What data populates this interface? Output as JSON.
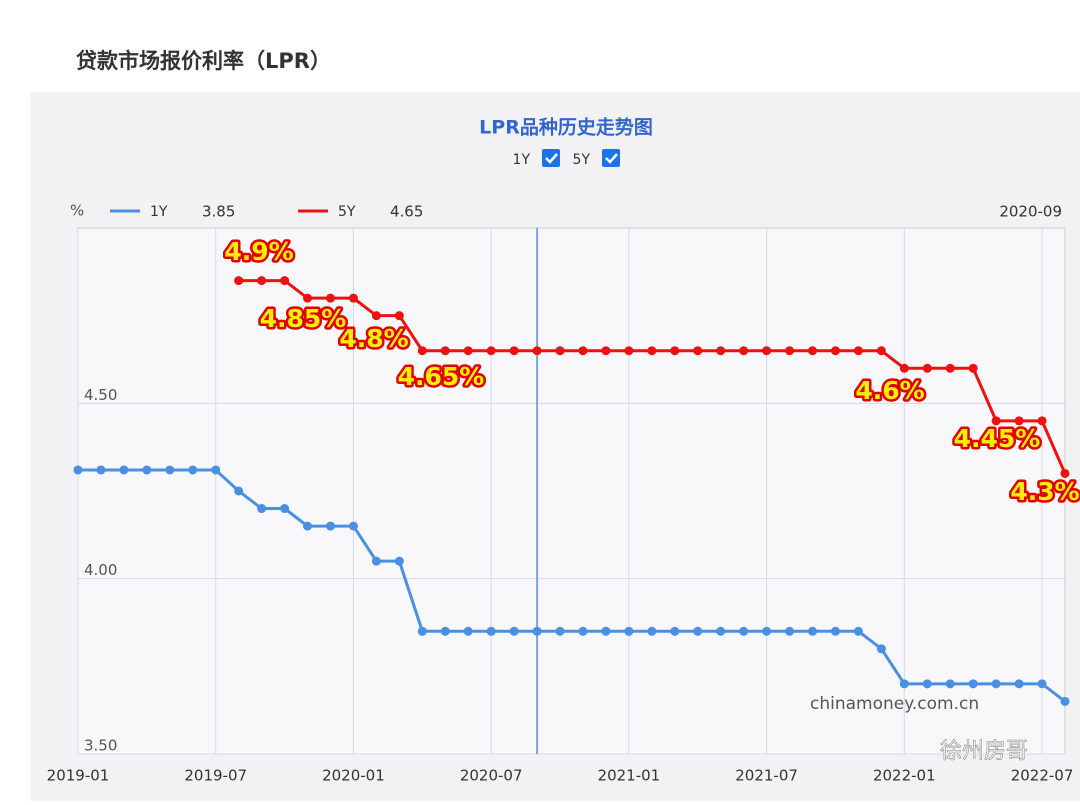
{
  "header": {
    "title": "贷款市场报价利率（LPR）"
  },
  "chart_data": {
    "type": "line",
    "title": "LPR品种历史走势图",
    "toggles": [
      "1Y",
      "5Y"
    ],
    "y_unit": "%",
    "hover_x": "2020-09",
    "categories": [
      "2019-01",
      null,
      null,
      null,
      null,
      null,
      "2019-07",
      null,
      null,
      null,
      null,
      null,
      "2020-01",
      null,
      null,
      null,
      null,
      null,
      "2020-07",
      null,
      null,
      null,
      null,
      null,
      "2021-01",
      null,
      null,
      null,
      null,
      null,
      "2021-07",
      null,
      null,
      null,
      null,
      null,
      "2022-01",
      null,
      null,
      null,
      null,
      null,
      "2022-07",
      null
    ],
    "series": [
      {
        "name": "1Y",
        "color": "#4a90e2",
        "hover_value": "3.85",
        "values": [
          4.31,
          4.31,
          4.31,
          4.31,
          4.31,
          4.31,
          4.31,
          4.25,
          4.2,
          4.2,
          4.15,
          4.15,
          4.15,
          4.05,
          4.05,
          3.85,
          3.85,
          3.85,
          3.85,
          3.85,
          3.85,
          3.85,
          3.85,
          3.85,
          3.85,
          3.85,
          3.85,
          3.85,
          3.85,
          3.85,
          3.85,
          3.85,
          3.85,
          3.85,
          3.85,
          3.8,
          3.7,
          3.7,
          3.7,
          3.7,
          3.7,
          3.7,
          3.7,
          3.65
        ]
      },
      {
        "name": "5Y",
        "color": "#ee1111",
        "hover_value": "4.65",
        "values": [
          null,
          null,
          null,
          null,
          null,
          null,
          null,
          4.85,
          4.85,
          4.85,
          4.8,
          4.8,
          4.8,
          4.75,
          4.75,
          4.65,
          4.65,
          4.65,
          4.65,
          4.65,
          4.65,
          4.65,
          4.65,
          4.65,
          4.65,
          4.65,
          4.65,
          4.65,
          4.65,
          4.65,
          4.65,
          4.65,
          4.65,
          4.65,
          4.65,
          4.65,
          4.6,
          4.6,
          4.6,
          4.6,
          4.45,
          4.45,
          4.45,
          4.3
        ]
      }
    ],
    "ylim": [
      3.5,
      5.0
    ],
    "yticks": [
      {
        "value": 3.5,
        "label": "3.50"
      },
      {
        "value": 4.0,
        "label": "4.00"
      },
      {
        "value": 4.5,
        "label": "4.50"
      }
    ],
    "grid": true,
    "annotations": [
      "4.9%",
      "4.85%",
      "4.8%",
      "4.65%",
      "4.6%",
      "4.45%",
      "4.3%"
    ],
    "watermark": "chinamoney.com.cn",
    "source_tag": "徐州房哥"
  }
}
